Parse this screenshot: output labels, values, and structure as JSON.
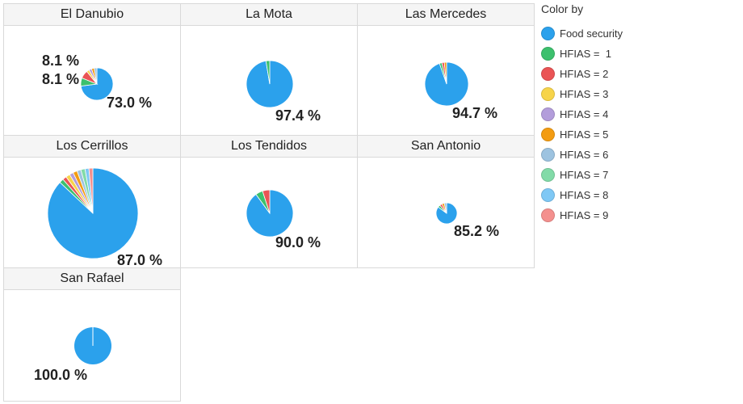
{
  "chart_data": {
    "type": "pie",
    "legend_title": "Color by",
    "legend_position": "right",
    "categories": [
      "Food security",
      "HFIAS =  1",
      "HFIAS = 2",
      "HFIAS = 3",
      "HFIAS = 4",
      "HFIAS = 5",
      "HFIAS = 6",
      "HFIAS = 7",
      "HFIAS = 8",
      "HFIAS = 9"
    ],
    "colors": [
      "#2ba1ec",
      "#3cc06d",
      "#ea5455",
      "#f7d44a",
      "#b39ddb",
      "#f39c12",
      "#9dc3e0",
      "#82dba8",
      "#7fc8f5",
      "#f4908e"
    ],
    "panels": [
      {
        "title": "El Danubio",
        "values": [
          73.0,
          8.1,
          8.1,
          2.7,
          2.7,
          2.7,
          2.7,
          0,
          0,
          0
        ],
        "labels": [
          "8.1 %",
          "8.1 %",
          "73.0 %"
        ]
      },
      {
        "title": "La Mota",
        "values": [
          97.4,
          2.6,
          0,
          0,
          0,
          0,
          0,
          0,
          0,
          0
        ],
        "labels": [
          "97.4 %"
        ]
      },
      {
        "title": "Las Mercedes",
        "values": [
          94.7,
          1.8,
          1.8,
          0,
          0,
          1.7,
          0,
          0,
          0,
          0
        ],
        "labels": [
          "94.7 %"
        ]
      },
      {
        "title": "Los Cerrillos",
        "values": [
          87.0,
          1.5,
          1.4,
          1.5,
          1.4,
          1.5,
          1.4,
          1.5,
          1.4,
          1.4
        ],
        "labels": [
          "87.0 %"
        ]
      },
      {
        "title": "Los Tendidos",
        "values": [
          90.0,
          5.0,
          5.0,
          0,
          0,
          0,
          0,
          0,
          0,
          0
        ],
        "labels": [
          "90.0 %"
        ]
      },
      {
        "title": "San Antonio",
        "values": [
          85.2,
          3.7,
          3.7,
          0,
          0,
          3.7,
          3.7,
          0,
          0,
          0
        ],
        "labels": [
          "85.2 %"
        ]
      },
      {
        "title": "San Rafael",
        "values": [
          100.0,
          0,
          0,
          0,
          0,
          0,
          0,
          0,
          0,
          0
        ],
        "labels": [
          "100.0 %"
        ]
      }
    ]
  }
}
